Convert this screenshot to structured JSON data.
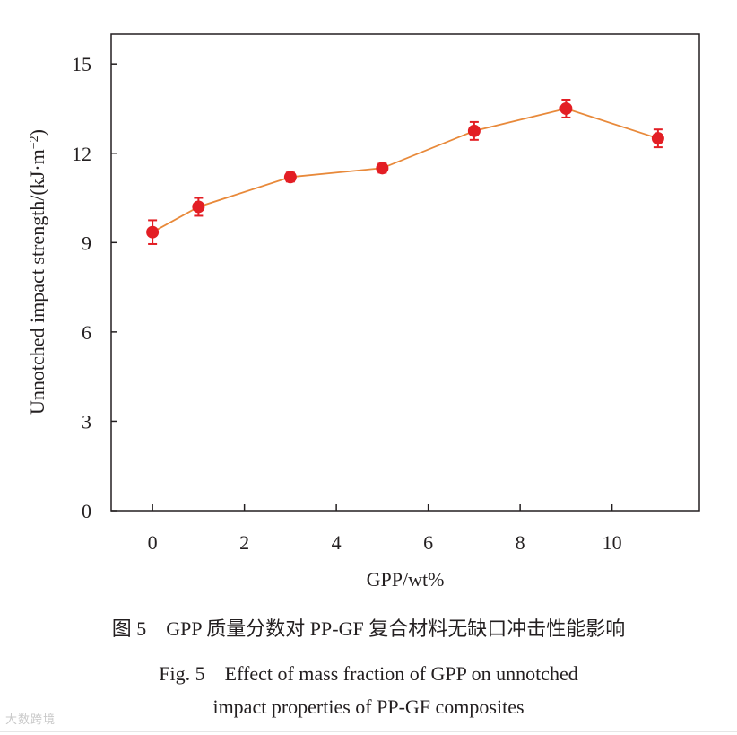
{
  "chart_data": {
    "type": "line",
    "x": [
      0,
      1,
      3,
      5,
      7,
      9,
      11
    ],
    "series": [
      {
        "name": "Unnotched impact strength",
        "values": [
          9.35,
          10.2,
          11.2,
          11.5,
          12.75,
          13.5,
          12.5
        ],
        "errors": [
          0.4,
          0.3,
          0.15,
          0.15,
          0.3,
          0.3,
          0.3
        ]
      }
    ],
    "xlabel": "GPP/wt%",
    "ylabel_main": "Unnotched impact strength/(kJ·m",
    "ylabel_sup": "−2",
    "ylabel_close": ")",
    "xlim": [
      -0.9,
      11.9
    ],
    "ylim": [
      0,
      16
    ],
    "xticks": [
      0,
      2,
      4,
      6,
      8,
      10
    ],
    "yticks": [
      0,
      3,
      6,
      9,
      12,
      15
    ],
    "grid": false,
    "colors": {
      "line": "#e8893a",
      "marker": "#e31e24",
      "axis": "#231f20"
    }
  },
  "captions": {
    "zh": "图 5　GPP 质量分数对 PP-GF 复合材料无缺口冲击性能影响",
    "en_line1": "Fig. 5　Effect of mass fraction of GPP on unnotched",
    "en_line2": "impact properties of PP-GF composites"
  },
  "watermark": "大数跨境"
}
